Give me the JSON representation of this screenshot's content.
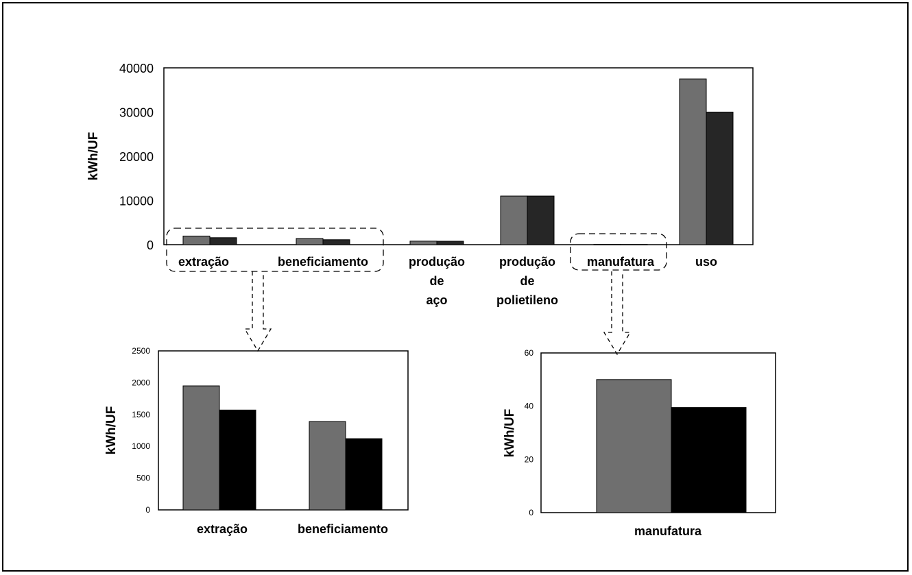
{
  "chart_data": [
    {
      "type": "bar",
      "ylabel": "kWh/UF",
      "ylim": [
        0,
        40000
      ],
      "yticks": [
        "0",
        "10000",
        "20000",
        "30000",
        "40000"
      ],
      "categories": [
        [
          "extração"
        ],
        [
          "beneficiamento"
        ],
        [
          "produção",
          "de",
          "aço"
        ],
        [
          "produção",
          "de",
          "polietileno"
        ],
        [
          "manufatura"
        ],
        [
          "uso"
        ]
      ],
      "series": [
        {
          "color": "#6f6f6f",
          "values": [
            1950,
            1400,
            800,
            11000,
            50,
            37500
          ]
        },
        {
          "color": "#262626",
          "values": [
            1580,
            1120,
            780,
            11000,
            40,
            30000
          ]
        }
      ]
    },
    {
      "type": "bar",
      "ylabel": "kWh/UF",
      "ylim": [
        0,
        2500
      ],
      "yticks": [
        "0",
        "500",
        "1000",
        "1500",
        "2000",
        "2500"
      ],
      "categories": [
        "extração",
        "beneficiamento"
      ],
      "series": [
        {
          "color": "#6f6f6f",
          "values": [
            1950,
            1390
          ]
        },
        {
          "color": "#000000",
          "values": [
            1570,
            1120
          ]
        }
      ]
    },
    {
      "type": "bar",
      "ylabel": "kWh/UF",
      "ylim": [
        0,
        60
      ],
      "yticks": [
        "0",
        "20",
        "40",
        "60"
      ],
      "categories": [
        "manufatura"
      ],
      "series": [
        {
          "color": "#6f6f6f",
          "values": [
            50
          ]
        },
        {
          "color": "#000000",
          "values": [
            39.5
          ]
        }
      ]
    }
  ]
}
